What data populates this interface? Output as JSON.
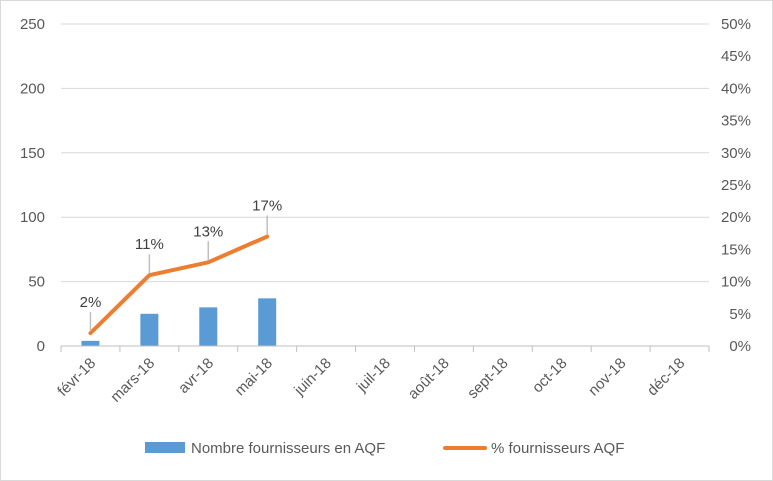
{
  "chart_data": {
    "type": "bar+line",
    "categories": [
      "févr-18",
      "mars-18",
      "avr-18",
      "mai-18",
      "juin-18",
      "juil-18",
      "août-18",
      "sept-18",
      "oct-18",
      "nov-18",
      "déc-18"
    ],
    "series": [
      {
        "name": "Nombre fournisseurs en AQF",
        "type": "bar",
        "axis": "left",
        "values": [
          4,
          25,
          30,
          37,
          null,
          null,
          null,
          null,
          null,
          null,
          null
        ],
        "color": "#5b9bd5"
      },
      {
        "name": "% fournisseurs AQF",
        "type": "line",
        "axis": "right",
        "values": [
          0.02,
          0.11,
          0.13,
          0.17,
          null,
          null,
          null,
          null,
          null,
          null,
          null
        ],
        "data_labels": [
          "2%",
          "11%",
          "13%",
          "17%"
        ],
        "color": "#ed7d31"
      }
    ],
    "y_left": {
      "ylim": [
        0,
        250
      ],
      "ticks": [
        0,
        50,
        100,
        150,
        200,
        250
      ],
      "tick_labels": [
        "0",
        "50",
        "100",
        "150",
        "200",
        "250"
      ]
    },
    "y_right": {
      "ylim": [
        0,
        0.5
      ],
      "ticks": [
        0,
        0.05,
        0.1,
        0.15,
        0.2,
        0.25,
        0.3,
        0.35,
        0.4,
        0.45,
        0.5
      ],
      "tick_labels": [
        "0%",
        "5%",
        "10%",
        "15%",
        "20%",
        "25%",
        "30%",
        "35%",
        "40%",
        "45%",
        "50%"
      ]
    },
    "grid": true,
    "legend_position": "bottom",
    "title": "",
    "xlabel": "",
    "ylabel": ""
  }
}
